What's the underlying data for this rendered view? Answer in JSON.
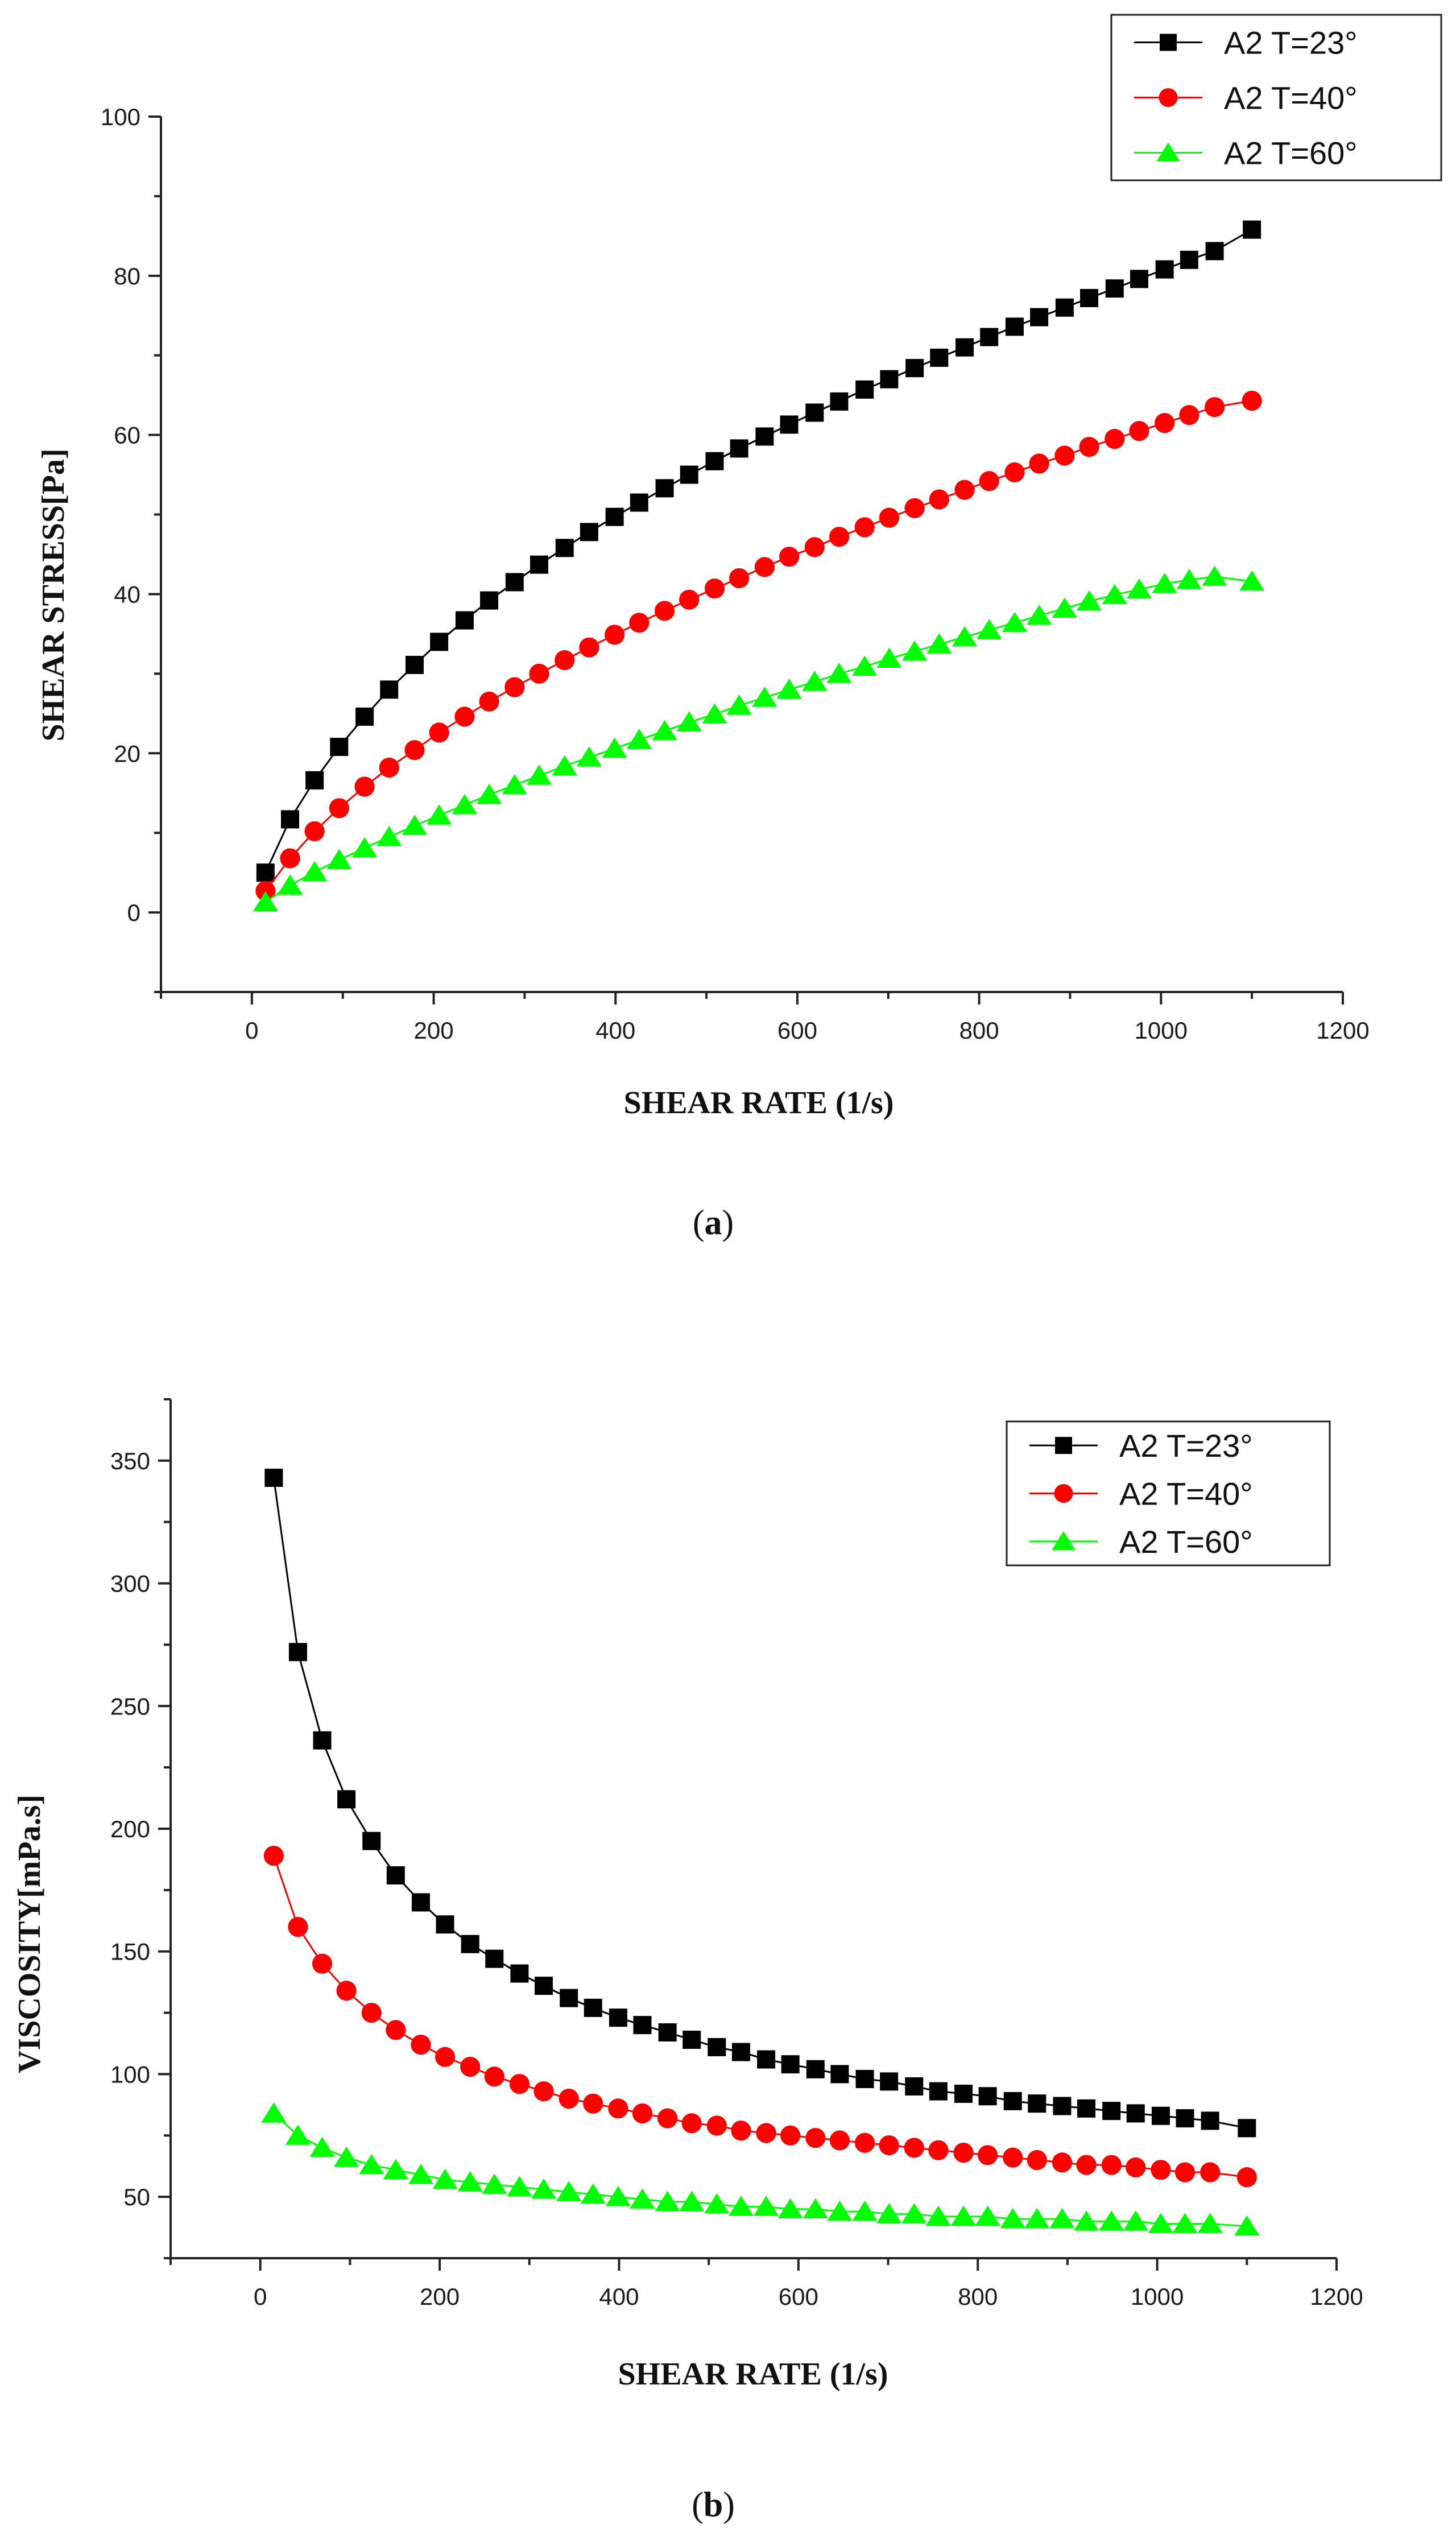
{
  "chart_data": [
    {
      "type": "line",
      "panel": "a",
      "panel_label": "a",
      "title": "",
      "xlabel": "SHEAR RATE (1/s)",
      "ylabel": "SHEAR STRESS[Pa]",
      "xlim": [
        -100,
        1200
      ],
      "ylim": [
        -10,
        100
      ],
      "xticks": [
        0,
        200,
        400,
        600,
        800,
        1000,
        1200
      ],
      "yticks": [
        0,
        20,
        40,
        60,
        80,
        100
      ],
      "x": [
        15,
        42,
        69,
        96,
        124,
        151,
        179,
        206,
        234,
        261,
        289,
        316,
        344,
        371,
        399,
        426,
        454,
        481,
        509,
        536,
        564,
        591,
        619,
        646,
        674,
        701,
        729,
        756,
        784,
        811,
        839,
        866,
        894,
        921,
        949,
        976,
        1004,
        1031,
        1059,
        1100
      ],
      "legend_position": "top-right",
      "series": [
        {
          "name": "A2 T=23°",
          "color": "#000000",
          "marker": "square",
          "values": [
            5.0,
            11.7,
            16.6,
            20.8,
            24.6,
            28.0,
            31.1,
            34.0,
            36.7,
            39.2,
            41.5,
            43.7,
            45.8,
            47.8,
            49.7,
            51.5,
            53.3,
            55.0,
            56.7,
            58.3,
            59.8,
            61.3,
            62.8,
            64.2,
            65.7,
            67.0,
            68.4,
            69.7,
            71.0,
            72.3,
            73.6,
            74.8,
            76.0,
            77.2,
            78.4,
            79.6,
            80.8,
            82.0,
            83.1,
            85.8
          ]
        },
        {
          "name": "A2 T=40°",
          "color": "#ff0000",
          "marker": "circle",
          "values": [
            2.7,
            6.8,
            10.2,
            13.1,
            15.8,
            18.2,
            20.4,
            22.6,
            24.6,
            26.5,
            28.3,
            30.0,
            31.7,
            33.3,
            34.9,
            36.4,
            37.9,
            39.3,
            40.7,
            42.0,
            43.4,
            44.7,
            45.9,
            47.2,
            48.4,
            49.6,
            50.8,
            51.9,
            53.1,
            54.2,
            55.3,
            56.4,
            57.4,
            58.5,
            59.5,
            60.5,
            61.5,
            62.5,
            63.5,
            64.3
          ]
        },
        {
          "name": "A2 T=60°",
          "color": "#00ff00",
          "marker": "triangle",
          "values": [
            1.3,
            3.4,
            5.1,
            6.6,
            8.1,
            9.5,
            10.9,
            12.2,
            13.5,
            14.8,
            16.0,
            17.2,
            18.4,
            19.5,
            20.6,
            21.7,
            22.8,
            23.9,
            24.9,
            26.0,
            27.0,
            28.0,
            29.0,
            30.0,
            30.9,
            31.9,
            32.8,
            33.7,
            34.6,
            35.5,
            36.4,
            37.3,
            38.2,
            39.1,
            39.9,
            40.6,
            41.3,
            41.8,
            42.2,
            41.6
          ]
        }
      ]
    },
    {
      "type": "line",
      "panel": "b",
      "panel_label": "b",
      "title": "",
      "xlabel": "SHEAR RATE (1/s)",
      "ylabel": "VISCOSITY[mPa.s]",
      "xlim": [
        -100,
        1200
      ],
      "ylim": [
        25,
        375
      ],
      "xticks": [
        0,
        200,
        400,
        600,
        800,
        1000,
        1200
      ],
      "yticks": [
        50,
        100,
        150,
        200,
        250,
        300,
        350
      ],
      "x": [
        15,
        42,
        69,
        96,
        124,
        151,
        179,
        206,
        234,
        261,
        289,
        316,
        344,
        371,
        399,
        426,
        454,
        481,
        509,
        536,
        564,
        591,
        619,
        646,
        674,
        701,
        729,
        756,
        784,
        811,
        839,
        866,
        894,
        921,
        949,
        976,
        1004,
        1031,
        1059,
        1100
      ],
      "legend_position": "top-right",
      "series": [
        {
          "name": "A2 T=23°",
          "color": "#000000",
          "marker": "square",
          "values": [
            343,
            272,
            236,
            212,
            195,
            181,
            170,
            161,
            153,
            147,
            141,
            136,
            131,
            127,
            123,
            120,
            117,
            114,
            111,
            109,
            106,
            104,
            102,
            100,
            98,
            97,
            95,
            93,
            92,
            91,
            89,
            88,
            87,
            86,
            85,
            84,
            83,
            82,
            81,
            78
          ]
        },
        {
          "name": "A2 T=40°",
          "color": "#ff0000",
          "marker": "circle",
          "values": [
            189,
            160,
            145,
            134,
            125,
            118,
            112,
            107,
            103,
            99,
            96,
            93,
            90,
            88,
            86,
            84,
            82,
            80,
            79,
            77,
            76,
            75,
            74,
            73,
            72,
            71,
            70,
            69,
            68,
            67,
            66,
            65,
            64,
            63,
            63,
            62,
            61,
            60,
            60,
            58
          ]
        },
        {
          "name": "A2 T=60°",
          "color": "#00ff00",
          "marker": "triangle",
          "values": [
            84,
            75,
            70,
            66,
            63,
            61,
            59,
            57,
            56,
            55,
            54,
            53,
            52,
            51,
            50,
            49,
            48,
            48,
            47,
            46,
            46,
            45,
            45,
            44,
            44,
            43,
            43,
            42,
            42,
            42,
            41,
            41,
            41,
            40,
            40,
            40,
            39,
            39,
            39,
            38
          ]
        }
      ]
    }
  ]
}
